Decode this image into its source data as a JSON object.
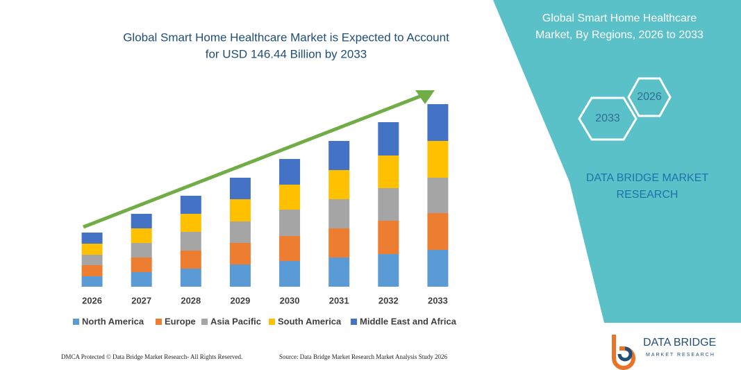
{
  "chart_data": {
    "type": "stacked-bar",
    "title": [
      "Global Smart Home Healthcare Market is Expected to Account",
      "for USD 146.44 Billion by 2033"
    ],
    "categories": [
      "2026",
      "2027",
      "2028",
      "2029",
      "2030",
      "2031",
      "2032",
      "2033"
    ],
    "series": [
      {
        "name": "North America",
        "color": "#5b9bd5",
        "values": [
          15,
          21,
          26,
          32,
          37,
          42,
          47,
          53
        ]
      },
      {
        "name": "Europe",
        "color": "#ed7d31",
        "values": [
          16,
          21,
          26,
          31,
          36,
          42,
          48,
          53
        ]
      },
      {
        "name": "Asia Pacific",
        "color": "#a5a5a5",
        "values": [
          15,
          21,
          27,
          31,
          38,
          42,
          47,
          51
        ]
      },
      {
        "name": "South America",
        "color": "#ffc000",
        "values": [
          16,
          21,
          26,
          32,
          36,
          42,
          47,
          53
        ]
      },
      {
        "name": "Middle East and Africa",
        "color": "#4472c4",
        "values": [
          16,
          21,
          26,
          31,
          37,
          42,
          48,
          53
        ]
      }
    ],
    "ylim": [
      0,
      263
    ]
  },
  "panel": {
    "title": [
      "Global Smart Home Healthcare",
      "Market, By Regions, 2026 to 2033"
    ],
    "hexagons": [
      "2026",
      "2033"
    ],
    "brand": [
      "DATA BRIDGE MARKET",
      "RESEARCH"
    ]
  },
  "footer": {
    "left": "DMCA Protected © Data Bridge Market Research- All Rights Reserved.",
    "right": "Source: Data Bridge Market Research Market Analysis Study 2026"
  },
  "logo": {
    "name": "DATA BRIDGE",
    "tagline": "MARKET RESEARCH"
  }
}
